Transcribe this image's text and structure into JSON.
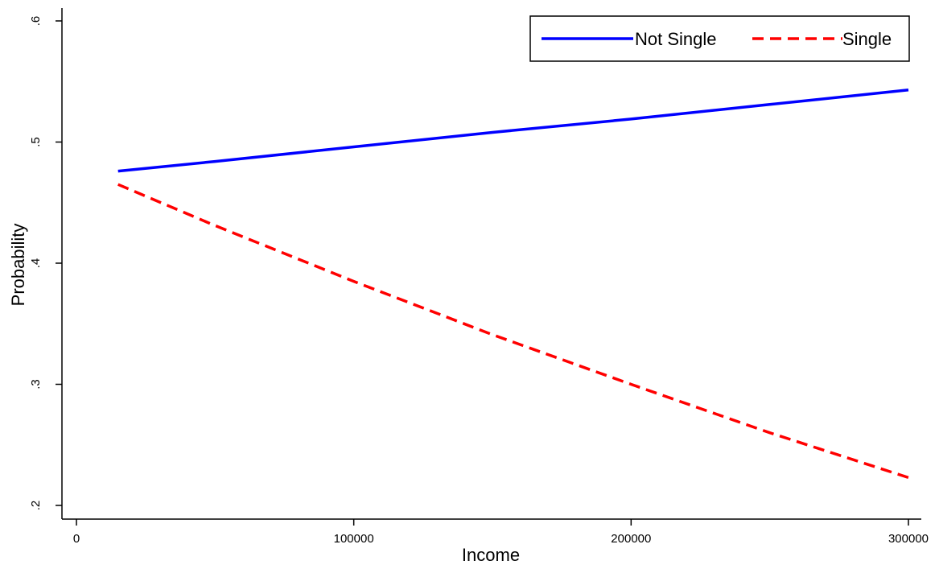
{
  "chart_data": {
    "type": "line",
    "title": "",
    "xlabel": "Income",
    "ylabel": "Probability",
    "xlim": [
      0,
      300000
    ],
    "ylim": [
      0.2,
      0.6
    ],
    "xticks": [
      0,
      100000,
      200000,
      300000
    ],
    "xtick_labels": [
      "0",
      "100000",
      "200000",
      "300000"
    ],
    "yticks": [
      0.2,
      0.3,
      0.4,
      0.5,
      0.6
    ],
    "ytick_labels": [
      ".2",
      ".3",
      ".4",
      ".5",
      ".6"
    ],
    "grid": false,
    "legend_position": "top-right",
    "series": [
      {
        "name": "Not Single",
        "color": "#0000ff",
        "style": "solid",
        "x": [
          15000,
          50000,
          100000,
          150000,
          200000,
          250000,
          300000
        ],
        "y": [
          0.476,
          0.484,
          0.496,
          0.508,
          0.519,
          0.531,
          0.543
        ]
      },
      {
        "name": "Single",
        "color": "#ff0000",
        "style": "dashed",
        "x": [
          15000,
          50000,
          100000,
          150000,
          200000,
          250000,
          300000
        ],
        "y": [
          0.465,
          0.431,
          0.385,
          0.341,
          0.3,
          0.26,
          0.223
        ]
      }
    ]
  }
}
